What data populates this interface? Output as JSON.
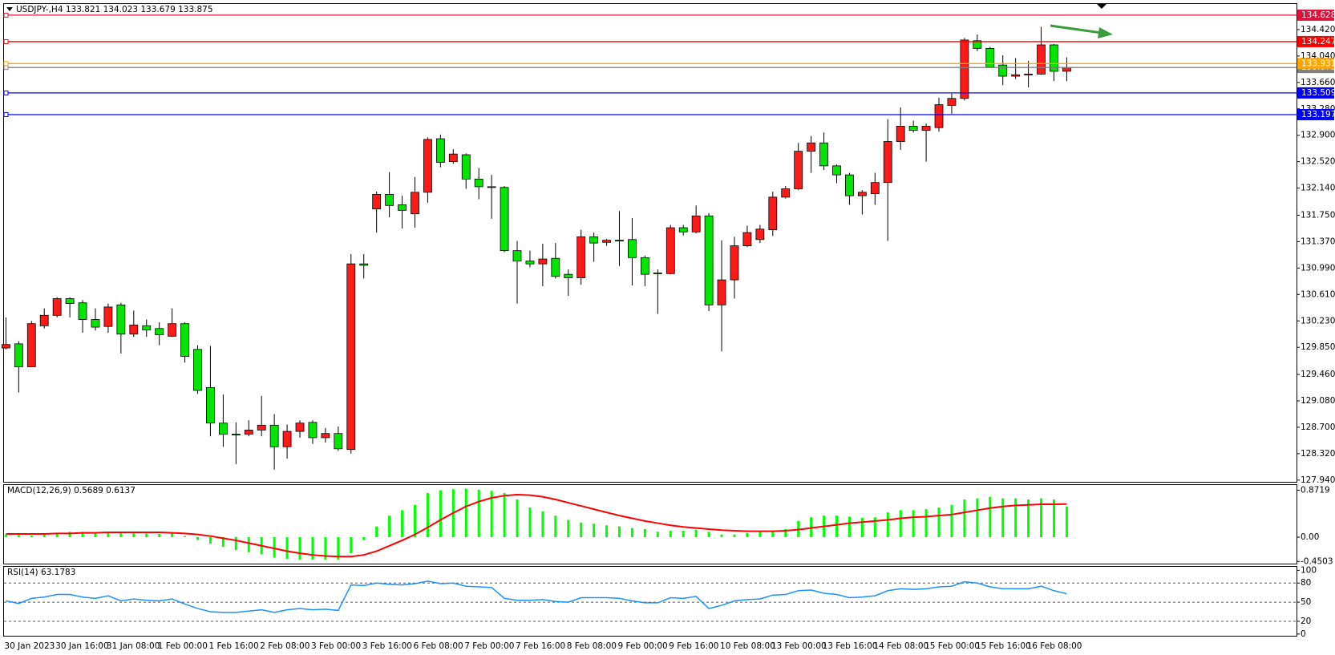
{
  "chart_data": [
    {
      "type": "candlestick",
      "title": "USDJPY-,H4  133.821 134.023 133.679 133.875",
      "up_color": "#ff1a1a",
      "down_color": "#00e600",
      "categories": [
        "30 Jan 2023",
        null,
        null,
        null,
        "30 Jan 16:00",
        null,
        null,
        null,
        "31 Jan 08:00",
        null,
        null,
        null,
        "1 Feb 00:00",
        null,
        null,
        null,
        "1 Feb 16:00",
        null,
        null,
        null,
        "2 Feb 08:00",
        null,
        null,
        null,
        "3 Feb 00:00",
        null,
        null,
        null,
        "3 Feb 16:00",
        null,
        null,
        null,
        "6 Feb 08:00",
        null,
        null,
        null,
        "7 Feb 00:00",
        null,
        null,
        null,
        "7 Feb 16:00",
        null,
        null,
        null,
        "8 Feb 08:00",
        null,
        null,
        null,
        "9 Feb 00:00",
        null,
        null,
        null,
        "9 Feb 16:00",
        null,
        null,
        null,
        "10 Feb 08:00",
        null,
        null,
        null,
        "13 Feb 00:00",
        null,
        null,
        null,
        "13 Feb 16:00",
        null,
        null,
        null,
        "14 Feb 08:00",
        null,
        null,
        null,
        "15 Feb 00:00",
        null,
        null,
        null,
        "15 Feb 16:00",
        null,
        null,
        null,
        "16 Feb 08:00",
        null,
        null,
        null
      ],
      "open": [
        129.84,
        129.9,
        129.57,
        130.16,
        130.31,
        130.55,
        130.49,
        130.25,
        130.15,
        130.46,
        130.04,
        130.16,
        130.12,
        130.01,
        130.19,
        129.82,
        129.27,
        128.76,
        128.6,
        128.6,
        128.66,
        128.73,
        128.42,
        128.64,
        128.77,
        128.55,
        128.61,
        128.38,
        131.05,
        131.84,
        132.05,
        131.9,
        131.77,
        132.08,
        132.85,
        132.52,
        132.62,
        132.27,
        132.16,
        132.15,
        131.24,
        131.09,
        131.05,
        131.13,
        130.9,
        130.85,
        131.44,
        131.36,
        131.39,
        131.4,
        131.14,
        130.92,
        130.91,
        131.57,
        131.51,
        131.74,
        130.46,
        130.82,
        131.31,
        131.4,
        131.54,
        132.01,
        132.13,
        132.67,
        132.79,
        132.46,
        132.33,
        132.03,
        132.06,
        132.22,
        132.81,
        133.03,
        132.97,
        133.01,
        133.33,
        133.43,
        134.26,
        134.15,
        133.91,
        133.75,
        133.77,
        133.78,
        134.2,
        133.821
      ],
      "high": [
        130.28,
        129.94,
        130.23,
        130.41,
        130.57,
        130.57,
        130.53,
        130.41,
        130.48,
        130.49,
        130.38,
        130.25,
        130.21,
        130.41,
        130.21,
        129.88,
        129.87,
        129.17,
        128.77,
        128.8,
        129.15,
        128.89,
        128.74,
        128.8,
        128.8,
        128.69,
        128.71,
        131.19,
        131.19,
        132.09,
        132.37,
        132.03,
        132.3,
        132.87,
        132.91,
        132.7,
        132.64,
        132.43,
        132.33,
        132.17,
        131.38,
        131.24,
        131.34,
        131.35,
        130.97,
        131.54,
        131.5,
        131.41,
        131.81,
        131.71,
        131.17,
        130.97,
        131.61,
        131.61,
        131.89,
        131.78,
        131.39,
        131.44,
        131.6,
        131.61,
        132.09,
        132.17,
        132.79,
        132.89,
        132.94,
        132.48,
        132.36,
        132.11,
        132.36,
        133.13,
        133.3,
        133.11,
        133.07,
        133.44,
        133.5,
        134.3,
        134.35,
        134.17,
        134.05,
        134.01,
        133.97,
        134.46,
        134.21,
        134.023
      ],
      "low": [
        129.82,
        129.2,
        129.57,
        130.12,
        130.28,
        130.28,
        130.06,
        130.09,
        130.06,
        129.76,
        130.0,
        130.0,
        129.88,
        130.0,
        129.63,
        129.18,
        128.57,
        128.42,
        128.17,
        128.57,
        128.57,
        128.09,
        128.25,
        128.55,
        128.46,
        128.48,
        128.36,
        128.32,
        130.84,
        131.5,
        131.72,
        131.56,
        131.57,
        131.93,
        132.44,
        132.49,
        132.13,
        131.98,
        131.7,
        131.22,
        130.48,
        131.0,
        130.73,
        130.84,
        130.59,
        130.75,
        131.08,
        131.31,
        131.02,
        130.74,
        130.73,
        130.33,
        130.9,
        131.46,
        131.49,
        130.37,
        129.79,
        130.55,
        131.29,
        131.35,
        131.45,
        131.99,
        132.11,
        132.36,
        132.4,
        132.21,
        131.9,
        131.76,
        131.9,
        131.38,
        132.69,
        132.94,
        132.52,
        132.95,
        133.21,
        133.4,
        134.11,
        133.87,
        133.62,
        133.71,
        133.59,
        133.77,
        133.68,
        133.679
      ],
      "close": [
        129.89,
        129.57,
        130.19,
        130.31,
        130.55,
        130.48,
        130.25,
        130.14,
        130.43,
        130.04,
        130.17,
        130.1,
        130.03,
        130.19,
        129.72,
        129.23,
        128.76,
        128.6,
        128.59,
        128.66,
        128.73,
        128.42,
        128.64,
        128.76,
        128.55,
        128.61,
        128.39,
        131.05,
        131.03,
        132.05,
        131.89,
        131.82,
        132.08,
        132.84,
        132.51,
        132.63,
        132.27,
        132.16,
        132.15,
        131.24,
        131.09,
        131.05,
        131.12,
        130.87,
        130.85,
        131.44,
        131.35,
        131.39,
        131.38,
        131.14,
        130.9,
        130.91,
        131.57,
        131.51,
        131.74,
        130.46,
        130.82,
        131.31,
        131.5,
        131.55,
        132.01,
        132.13,
        132.67,
        132.79,
        132.46,
        132.33,
        132.03,
        132.08,
        132.22,
        132.81,
        133.03,
        132.97,
        133.03,
        133.34,
        133.43,
        134.27,
        134.15,
        133.88,
        133.75,
        133.77,
        133.78,
        134.2,
        133.82,
        133.875
      ],
      "ylim": [
        127.915,
        134.788
      ],
      "yticks": [
        {
          "value": 134.42,
          "label": "134.420"
        },
        {
          "value": 134.04,
          "label": "134.040"
        },
        {
          "value": 133.66,
          "label": "133.660"
        },
        {
          "value": 133.28,
          "label": "133.280"
        },
        {
          "value": 132.9,
          "label": "132.900"
        },
        {
          "value": 132.52,
          "label": "132.520"
        },
        {
          "value": 132.14,
          "label": "132.140"
        },
        {
          "value": 131.75,
          "label": "131.750"
        },
        {
          "value": 131.37,
          "label": "131.370"
        },
        {
          "value": 130.99,
          "label": "130.990"
        },
        {
          "value": 130.61,
          "label": "130.610"
        },
        {
          "value": 130.23,
          "label": "130.230"
        },
        {
          "value": 129.85,
          "label": "129.850"
        },
        {
          "value": 129.46,
          "label": "129.460"
        },
        {
          "value": 129.08,
          "label": "129.080"
        },
        {
          "value": 128.7,
          "label": "128.700"
        },
        {
          "value": 128.32,
          "label": "128.320"
        },
        {
          "value": 127.94,
          "label": "127.940"
        }
      ],
      "hlines": [
        {
          "value": 134.628,
          "color": "#dc143c"
        },
        {
          "value": 134.247,
          "color": "#ff0000"
        },
        {
          "value": 133.875,
          "color": "#808080"
        },
        {
          "value": 133.931,
          "color": "#ffa500"
        },
        {
          "value": 133.509,
          "color": "#0000ff"
        },
        {
          "value": 133.197,
          "color": "#0000ff"
        }
      ]
    },
    {
      "type": "macd",
      "title": "MACD(12,26,9) 0.5689 0.6137",
      "series": [
        {
          "kind": "bar",
          "color": "#00ff00",
          "values": [
            0.05,
            0.04,
            0.03,
            0.05,
            0.08,
            0.1,
            0.1,
            0.09,
            0.1,
            0.08,
            0.08,
            0.07,
            0.06,
            0.07,
            0.02,
            -0.05,
            -0.12,
            -0.18,
            -0.24,
            -0.28,
            -0.32,
            -0.38,
            -0.4,
            -0.42,
            -0.42,
            -0.42,
            -0.42,
            -0.3,
            -0.05,
            0.2,
            0.4,
            0.5,
            0.6,
            0.82,
            0.87,
            0.89,
            0.9,
            0.88,
            0.86,
            0.82,
            0.7,
            0.55,
            0.48,
            0.4,
            0.32,
            0.27,
            0.25,
            0.22,
            0.2,
            0.17,
            0.15,
            0.1,
            0.12,
            0.12,
            0.14,
            0.1,
            0.05,
            0.05,
            0.08,
            0.1,
            0.12,
            0.15,
            0.3,
            0.37,
            0.4,
            0.4,
            0.38,
            0.36,
            0.37,
            0.46,
            0.5,
            0.5,
            0.52,
            0.55,
            0.6,
            0.7,
            0.72,
            0.75,
            0.72,
            0.72,
            0.7,
            0.72,
            0.7,
            0.5689
          ]
        },
        {
          "kind": "line",
          "color": "#ff0000",
          "values": [
            0.06,
            0.06,
            0.06,
            0.06,
            0.07,
            0.07,
            0.08,
            0.08,
            0.09,
            0.09,
            0.09,
            0.09,
            0.09,
            0.08,
            0.07,
            0.05,
            0.02,
            -0.02,
            -0.06,
            -0.11,
            -0.16,
            -0.21,
            -0.26,
            -0.3,
            -0.33,
            -0.35,
            -0.36,
            -0.36,
            -0.33,
            -0.26,
            -0.16,
            -0.06,
            0.05,
            0.18,
            0.32,
            0.45,
            0.57,
            0.66,
            0.73,
            0.77,
            0.79,
            0.78,
            0.75,
            0.7,
            0.64,
            0.58,
            0.52,
            0.46,
            0.4,
            0.35,
            0.3,
            0.26,
            0.22,
            0.19,
            0.17,
            0.15,
            0.13,
            0.12,
            0.11,
            0.11,
            0.11,
            0.12,
            0.14,
            0.17,
            0.2,
            0.23,
            0.26,
            0.28,
            0.3,
            0.32,
            0.35,
            0.37,
            0.38,
            0.4,
            0.42,
            0.46,
            0.5,
            0.54,
            0.57,
            0.59,
            0.6,
            0.61,
            0.61,
            0.6137
          ]
        }
      ],
      "ylim": [
        -0.491,
        0.983
      ],
      "yticks": [
        0.8719,
        {
          "value": 0,
          "label": "0.00"
        },
        -0.4503
      ]
    },
    {
      "type": "line",
      "title": "RSI(14) 63.1783",
      "color": "#1e90ff",
      "values": [
        52,
        48,
        56,
        58,
        62,
        62,
        58,
        56,
        60,
        52,
        55,
        53,
        52,
        55,
        47,
        40,
        35,
        34,
        34,
        36,
        38,
        34,
        38,
        40,
        38,
        39,
        37,
        77,
        76,
        80,
        78,
        77,
        79,
        83,
        79,
        80,
        75,
        74,
        73,
        56,
        53,
        53,
        54,
        51,
        50,
        57,
        57,
        57,
        56,
        52,
        49,
        49,
        57,
        56,
        59,
        40,
        45,
        52,
        54,
        55,
        61,
        62,
        68,
        69,
        64,
        62,
        57,
        58,
        60,
        68,
        71,
        70,
        71,
        74,
        75,
        82,
        80,
        74,
        71,
        71,
        71,
        75,
        68,
        63.1783
      ],
      "ylim": [
        -2.7,
        106.7
      ],
      "yticks": [
        100,
        80,
        50,
        20,
        0
      ]
    }
  ]
}
